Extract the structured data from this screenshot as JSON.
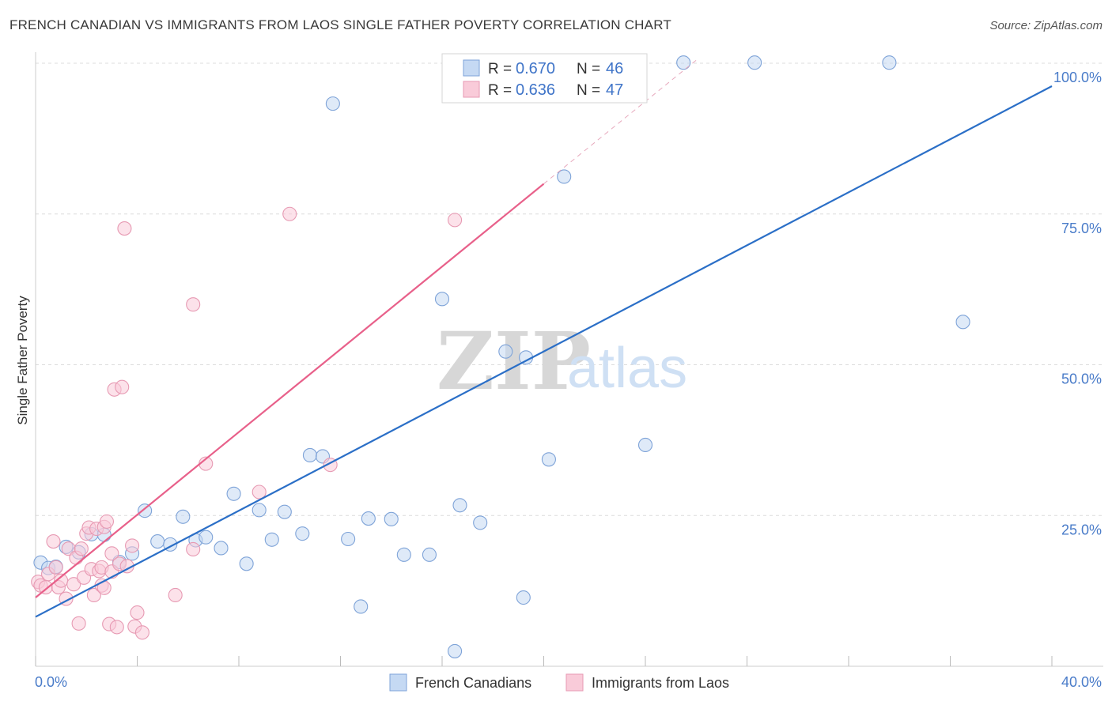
{
  "title": "FRENCH CANADIAN VS IMMIGRANTS FROM LAOS SINGLE FATHER POVERTY CORRELATION CHART",
  "source": "Source: ZipAtlas.com",
  "watermark": {
    "zip": "ZIP",
    "atlas": "atlas"
  },
  "colors": {
    "blue_fill": "#c5d9f3",
    "blue_stroke": "#7ea3d8",
    "blue_line": "#2b6fc7",
    "pink_fill": "#f9cbd9",
    "pink_stroke": "#e79ab3",
    "pink_line": "#e8608a",
    "grid": "#dcdcdc",
    "tick_label": "#4a7cc9"
  },
  "legend": {
    "rows": [
      {
        "r_label": "R = ",
        "r_value": "0.670",
        "n_label": "N = ",
        "n_value": "46"
      },
      {
        "r_label": "R = ",
        "r_value": "0.636",
        "n_label": "N = ",
        "n_value": "47"
      }
    ]
  },
  "chart_data": {
    "type": "scatter",
    "title": "FRENCH CANADIAN VS IMMIGRANTS FROM LAOS SINGLE FATHER POVERTY CORRELATION CHART",
    "xlabel": "",
    "ylabel": "Single Father Poverty",
    "xlim": [
      0,
      40
    ],
    "ylim": [
      0,
      102
    ],
    "x_tick_labels": [
      "0.0%",
      "40.0%"
    ],
    "y_ticks": [
      25,
      50,
      75,
      100
    ],
    "y_tick_labels": [
      "25.0%",
      "50.0%",
      "75.0%",
      "100.0%"
    ],
    "grid": true,
    "legend_position": "top-center",
    "series": [
      {
        "name": "French Canadians",
        "color": "#7ea3d8",
        "r": 0.67,
        "n": 46,
        "trend": {
          "x": [
            0,
            40
          ],
          "y": [
            8.2,
            96.2
          ]
        },
        "points": [
          [
            0.2,
            17.2
          ],
          [
            0.5,
            16.3
          ],
          [
            0.8,
            16.5
          ],
          [
            1.2,
            19.8
          ],
          [
            1.7,
            18.9
          ],
          [
            2.2,
            21.9
          ],
          [
            2.7,
            21.8
          ],
          [
            3.3,
            17.3
          ],
          [
            3.8,
            18.7
          ],
          [
            4.3,
            25.8
          ],
          [
            4.8,
            20.7
          ],
          [
            5.3,
            20.2
          ],
          [
            5.8,
            24.8
          ],
          [
            6.3,
            20.9
          ],
          [
            6.7,
            21.4
          ],
          [
            7.3,
            19.6
          ],
          [
            7.8,
            28.6
          ],
          [
            8.3,
            17.0
          ],
          [
            8.8,
            25.9
          ],
          [
            9.3,
            21.0
          ],
          [
            9.8,
            25.6
          ],
          [
            10.5,
            22.0
          ],
          [
            10.8,
            35.0
          ],
          [
            11.3,
            34.8
          ],
          [
            11.7,
            93.3
          ],
          [
            12.3,
            21.1
          ],
          [
            12.8,
            9.9
          ],
          [
            13.1,
            24.5
          ],
          [
            14.0,
            24.4
          ],
          [
            14.5,
            18.5
          ],
          [
            15.5,
            18.5
          ],
          [
            16.0,
            60.9
          ],
          [
            16.5,
            2.5
          ],
          [
            16.7,
            26.7
          ],
          [
            17.5,
            23.8
          ],
          [
            18.5,
            52.2
          ],
          [
            19.2,
            11.4
          ],
          [
            19.3,
            51.2
          ],
          [
            20.2,
            34.3
          ],
          [
            20.8,
            81.2
          ],
          [
            23.7,
            100.1
          ],
          [
            24.0,
            36.7
          ],
          [
            25.5,
            100.1
          ],
          [
            28.3,
            100.1
          ],
          [
            33.6,
            100.1
          ],
          [
            36.5,
            57.1
          ]
        ]
      },
      {
        "name": "Immigrants from Laos",
        "color": "#e79ab3",
        "r": 0.636,
        "n": 47,
        "trend": {
          "x": [
            0,
            20
          ],
          "y": [
            11.4,
            80.0
          ],
          "dashed_to": {
            "x": 26,
            "y": 100.5
          }
        },
        "points": [
          [
            0.1,
            14.0
          ],
          [
            0.2,
            13.4
          ],
          [
            0.4,
            13.1
          ],
          [
            0.5,
            15.3
          ],
          [
            0.7,
            20.7
          ],
          [
            0.8,
            16.4
          ],
          [
            0.9,
            13.1
          ],
          [
            1.0,
            14.2
          ],
          [
            1.2,
            11.2
          ],
          [
            1.3,
            19.5
          ],
          [
            1.5,
            13.6
          ],
          [
            1.6,
            18.0
          ],
          [
            1.7,
            7.1
          ],
          [
            1.8,
            19.5
          ],
          [
            1.9,
            14.7
          ],
          [
            2.0,
            22.0
          ],
          [
            2.1,
            23.0
          ],
          [
            2.2,
            16.1
          ],
          [
            2.3,
            11.8
          ],
          [
            2.4,
            22.8
          ],
          [
            2.5,
            15.8
          ],
          [
            2.6,
            13.4
          ],
          [
            2.6,
            16.4
          ],
          [
            2.7,
            13.0
          ],
          [
            2.7,
            23.1
          ],
          [
            2.8,
            24.0
          ],
          [
            2.9,
            7.0
          ],
          [
            3.0,
            18.7
          ],
          [
            3.0,
            15.7
          ],
          [
            3.1,
            45.9
          ],
          [
            3.2,
            6.5
          ],
          [
            3.3,
            17.0
          ],
          [
            3.4,
            46.3
          ],
          [
            3.5,
            72.6
          ],
          [
            3.6,
            16.6
          ],
          [
            3.8,
            20.0
          ],
          [
            3.9,
            6.6
          ],
          [
            4.0,
            8.9
          ],
          [
            4.2,
            5.6
          ],
          [
            5.5,
            11.8
          ],
          [
            6.2,
            60.0
          ],
          [
            6.2,
            19.4
          ],
          [
            6.7,
            33.6
          ],
          [
            8.8,
            28.9
          ],
          [
            10.0,
            75.0
          ],
          [
            11.6,
            33.4
          ],
          [
            16.5,
            74.0
          ]
        ]
      }
    ]
  }
}
